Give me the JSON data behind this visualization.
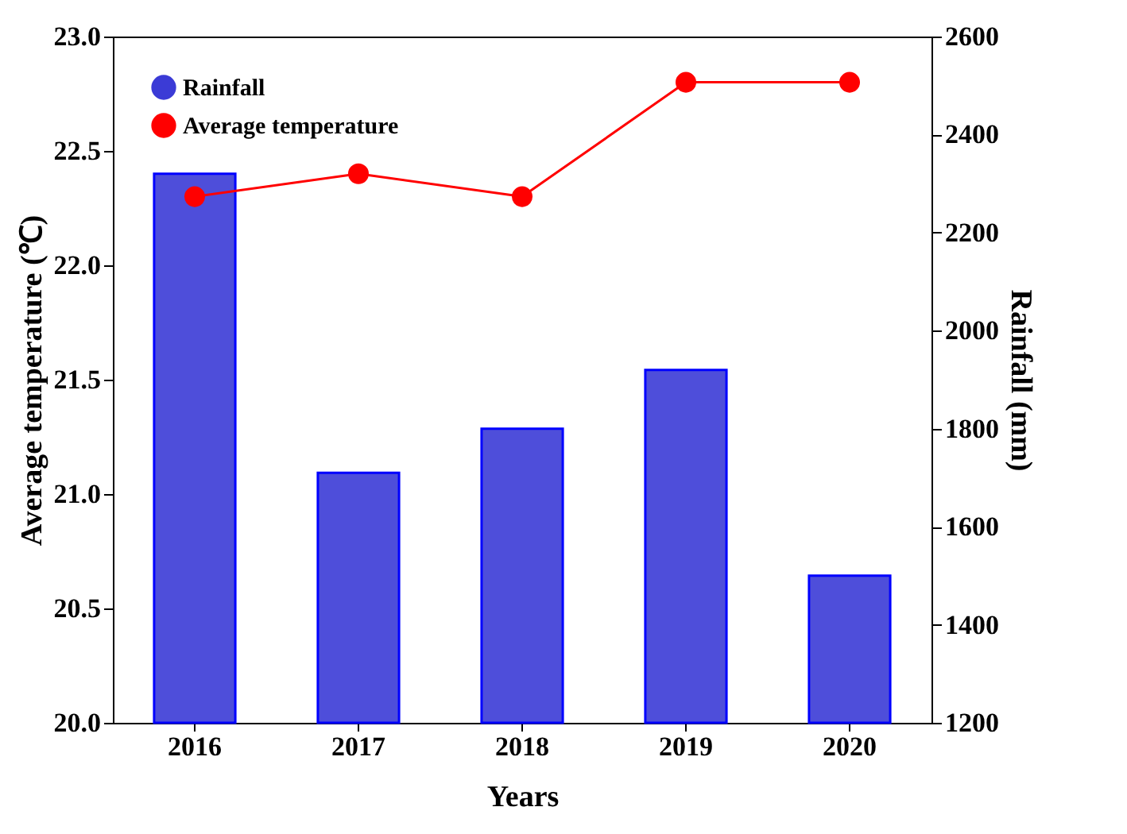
{
  "chart_data": {
    "type": "bar",
    "xlabel": "Years",
    "ylabel": "Average temperature (℃)",
    "y2label": "Rainfall (mm)",
    "categories": [
      "2016",
      "2017",
      "2018",
      "2019",
      "2020"
    ],
    "series": [
      {
        "name": "Rainfall",
        "axis": "y2",
        "color": "#3b3bd6",
        "values": [
          2320,
          1710,
          1800,
          1920,
          1500
        ]
      },
      {
        "name": "Average temperature",
        "type": "line",
        "axis": "y",
        "color": "#ff0000",
        "values": [
          22.3,
          22.4,
          22.3,
          22.8,
          22.8
        ]
      }
    ],
    "ylim": [
      20,
      23
    ],
    "yticks": [
      {
        "value": 20,
        "label": "20.0"
      },
      {
        "value": 20.5,
        "label": "20.5"
      },
      {
        "value": 21,
        "label": "21.0"
      },
      {
        "value": 21.5,
        "label": "21.5"
      },
      {
        "value": 22,
        "label": "22.0"
      },
      {
        "value": 22.5,
        "label": "22.5"
      },
      {
        "value": 23,
        "label": "23.0"
      }
    ],
    "y2lim": [
      1200,
      2600
    ],
    "y2ticks": [
      1200,
      1400,
      1600,
      1800,
      2000,
      2200,
      2400,
      2600
    ],
    "legend": "top left",
    "marker": "circle",
    "line_style": "solid",
    "grid": false
  }
}
